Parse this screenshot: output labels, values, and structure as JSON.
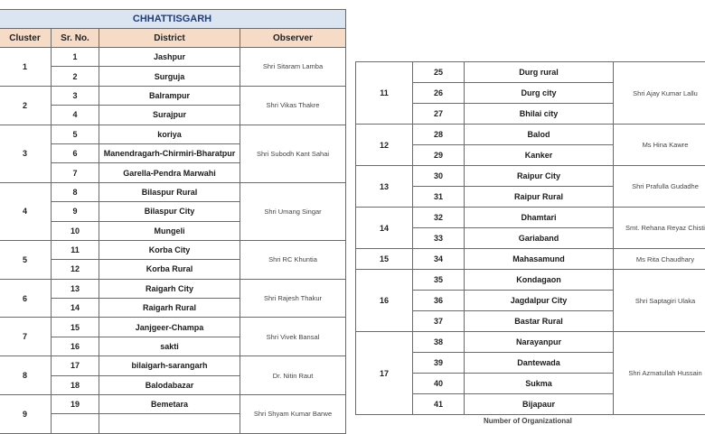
{
  "left_table": {
    "title": "CHHATTISGARH",
    "headers": [
      "Cluster",
      "Sr. No.",
      "District",
      "Observer"
    ],
    "clusters": [
      {
        "cluster": "1",
        "observer": "Shri Sitaram Lamba",
        "districts": [
          [
            "1",
            "Jashpur"
          ],
          [
            "2",
            "Surguja"
          ]
        ]
      },
      {
        "cluster": "2",
        "observer": "Shri Vikas Thakre",
        "districts": [
          [
            "3",
            "Balrampur"
          ],
          [
            "4",
            "Surajpur"
          ]
        ]
      },
      {
        "cluster": "3",
        "observer": "Shri Subodh Kant Sahai",
        "districts": [
          [
            "5",
            "koriya"
          ],
          [
            "6",
            "Manendragarh-Chirmiri-Bharatpur"
          ],
          [
            "7",
            "Garella-Pendra Marwahi"
          ]
        ]
      },
      {
        "cluster": "4",
        "observer": "Shri Umang Singar",
        "districts": [
          [
            "8",
            "Bilaspur Rural"
          ],
          [
            "9",
            "Bilaspur City"
          ],
          [
            "10",
            "Mungeli"
          ]
        ]
      },
      {
        "cluster": "5",
        "observer": "Shri RC Khuntia",
        "districts": [
          [
            "11",
            "Korba City"
          ],
          [
            "12",
            "Korba Rural"
          ]
        ]
      },
      {
        "cluster": "6",
        "observer": "Shri Rajesh Thakur",
        "districts": [
          [
            "13",
            "Raigarh City"
          ],
          [
            "14",
            "Raigarh Rural"
          ]
        ]
      },
      {
        "cluster": "7",
        "observer": "Shri Vivek Bansal",
        "districts": [
          [
            "15",
            "Janjgeer-Champa"
          ],
          [
            "16",
            "sakti"
          ]
        ]
      },
      {
        "cluster": "8",
        "observer": "Dr. Nitin Raut",
        "districts": [
          [
            "17",
            "bilaigarh-sarangarh"
          ],
          [
            "18",
            "Balodabazar"
          ]
        ]
      },
      {
        "cluster": "9",
        "observer": "Shri Shyam Kumar Barwe",
        "districts": [
          [
            "19",
            "Bemetara"
          ],
          [
            "",
            ""
          ]
        ]
      }
    ]
  },
  "right_table": {
    "clusters": [
      {
        "cluster": "11",
        "observer": "Shri Ajay Kumar Lallu",
        "districts": [
          [
            "25",
            "Durg rural"
          ],
          [
            "26",
            "Durg city"
          ],
          [
            "27",
            "Bhilai city"
          ]
        ]
      },
      {
        "cluster": "12",
        "observer": "Ms Hina Kawre",
        "districts": [
          [
            "28",
            "Balod"
          ],
          [
            "29",
            "Kanker"
          ]
        ]
      },
      {
        "cluster": "13",
        "observer": "Shri Prafulla Gudadhe",
        "districts": [
          [
            "30",
            "Raipur City"
          ],
          [
            "31",
            "Raipur Rural"
          ]
        ]
      },
      {
        "cluster": "14",
        "observer": "Smt. Rehana Reyaz Chisti",
        "districts": [
          [
            "32",
            "Dhamtari"
          ],
          [
            "33",
            "Gariaband"
          ]
        ]
      },
      {
        "cluster": "15",
        "observer": "Ms Rita Chaudhary",
        "districts": [
          [
            "34",
            "Mahasamund"
          ]
        ]
      },
      {
        "cluster": "16",
        "observer": "Shri Saptagiri Ulaka",
        "districts": [
          [
            "35",
            "Kondagaon"
          ],
          [
            "36",
            "Jagdalpur City"
          ],
          [
            "37",
            "Bastar Rural"
          ]
        ]
      },
      {
        "cluster": "17",
        "observer": "Shri Azmatullah Hussain",
        "districts": [
          [
            "38",
            "Narayanpur"
          ],
          [
            "39",
            "Dantewada"
          ],
          [
            "40",
            "Sukma"
          ],
          [
            "41",
            "Bijapaur"
          ]
        ]
      }
    ],
    "footer_partial": "Number of Organizational"
  }
}
